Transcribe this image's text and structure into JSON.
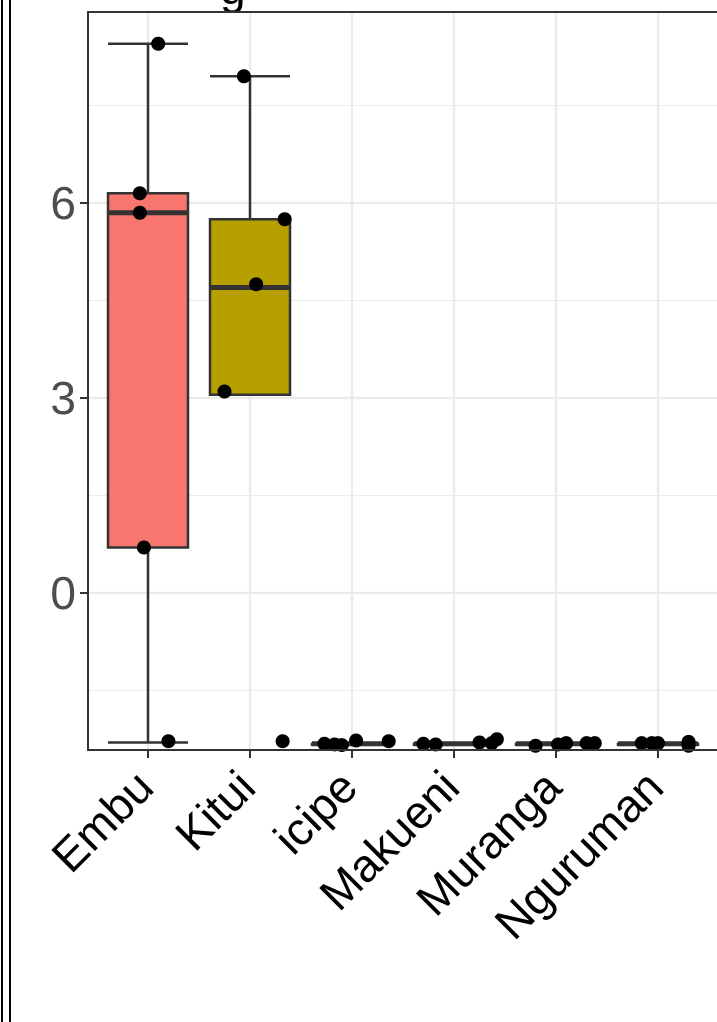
{
  "chart_data": {
    "type": "box",
    "title_fragment": "g",
    "xlabel": "",
    "ylabel": "",
    "categories": [
      "Embu",
      "Kitui",
      "icipe",
      "Makueni",
      "Muranga",
      "Nguruman"
    ],
    "y_ticks": [
      0,
      3,
      6
    ],
    "y_tick_labels": [
      "0",
      "3",
      "6"
    ],
    "ylim": [
      -2.4,
      8.8
    ],
    "grid": true,
    "legend": "none",
    "colors": {
      "Embu": "#F8766D",
      "Kitui": "#B79F00",
      "icipe": "#00BA38",
      "Makueni": "#00BFC4",
      "Muranga": "#619CFF",
      "Nguruman": "#F564E3"
    },
    "boxes": [
      {
        "category": "Embu",
        "q1": 0.7,
        "median": 5.85,
        "q3": 6.15,
        "whisker_low": -2.3,
        "whisker_high": 8.45
      },
      {
        "category": "Kitui",
        "q1": 3.05,
        "median": 4.7,
        "q3": 5.75,
        "whisker_low": 3.05,
        "whisker_high": 7.95
      },
      {
        "category": "icipe",
        "q1": -2.32,
        "median": -2.32,
        "q3": -2.32,
        "whisker_low": -2.32,
        "whisker_high": -2.32
      },
      {
        "category": "Makueni",
        "q1": -2.32,
        "median": -2.32,
        "q3": -2.32,
        "whisker_low": -2.32,
        "whisker_high": -2.32
      },
      {
        "category": "Muranga",
        "q1": -2.32,
        "median": -2.32,
        "q3": -2.32,
        "whisker_low": -2.32,
        "whisker_high": -2.32
      },
      {
        "category": "Nguruman",
        "q1": -2.32,
        "median": -2.32,
        "q3": -2.32,
        "whisker_low": -2.32,
        "whisker_high": -2.32
      }
    ],
    "points": [
      {
        "category": "Embu",
        "jitter": 0.1,
        "y": 8.45
      },
      {
        "category": "Embu",
        "jitter": -0.08,
        "y": 6.15
      },
      {
        "category": "Embu",
        "jitter": -0.08,
        "y": 5.85
      },
      {
        "category": "Embu",
        "jitter": -0.04,
        "y": 0.7
      },
      {
        "category": "Embu",
        "jitter": 0.2,
        "y": -2.28
      },
      {
        "category": "Kitui",
        "jitter": -0.06,
        "y": 7.95
      },
      {
        "category": "Kitui",
        "jitter": 0.34,
        "y": 5.75
      },
      {
        "category": "Kitui",
        "jitter": 0.06,
        "y": 4.75
      },
      {
        "category": "Kitui",
        "jitter": -0.25,
        "y": 3.1
      },
      {
        "category": "Kitui",
        "jitter": 0.32,
        "y": -2.28
      },
      {
        "category": "icipe",
        "jitter": -0.27,
        "y": -2.32
      },
      {
        "category": "icipe",
        "jitter": -0.17,
        "y": -2.33
      },
      {
        "category": "icipe",
        "jitter": -0.1,
        "y": -2.34
      },
      {
        "category": "icipe",
        "jitter": 0.04,
        "y": -2.27
      },
      {
        "category": "icipe",
        "jitter": 0.36,
        "y": -2.28
      },
      {
        "category": "Makueni",
        "jitter": -0.3,
        "y": -2.32
      },
      {
        "category": "Makueni",
        "jitter": -0.18,
        "y": -2.33
      },
      {
        "category": "Makueni",
        "jitter": 0.25,
        "y": -2.3
      },
      {
        "category": "Makueni",
        "jitter": 0.37,
        "y": -2.31
      },
      {
        "category": "Makueni",
        "jitter": 0.42,
        "y": -2.25
      },
      {
        "category": "Muranga",
        "jitter": -0.2,
        "y": -2.35
      },
      {
        "category": "Muranga",
        "jitter": 0.02,
        "y": -2.33
      },
      {
        "category": "Muranga",
        "jitter": 0.1,
        "y": -2.31
      },
      {
        "category": "Muranga",
        "jitter": 0.3,
        "y": -2.31
      },
      {
        "category": "Muranga",
        "jitter": 0.38,
        "y": -2.31
      },
      {
        "category": "Nguruman",
        "jitter": -0.16,
        "y": -2.31
      },
      {
        "category": "Nguruman",
        "jitter": -0.06,
        "y": -2.31
      },
      {
        "category": "Nguruman",
        "jitter": 0.0,
        "y": -2.31
      },
      {
        "category": "Nguruman",
        "jitter": 0.3,
        "y": -2.29
      },
      {
        "category": "Nguruman",
        "jitter": 0.3,
        "y": -2.35
      }
    ]
  }
}
